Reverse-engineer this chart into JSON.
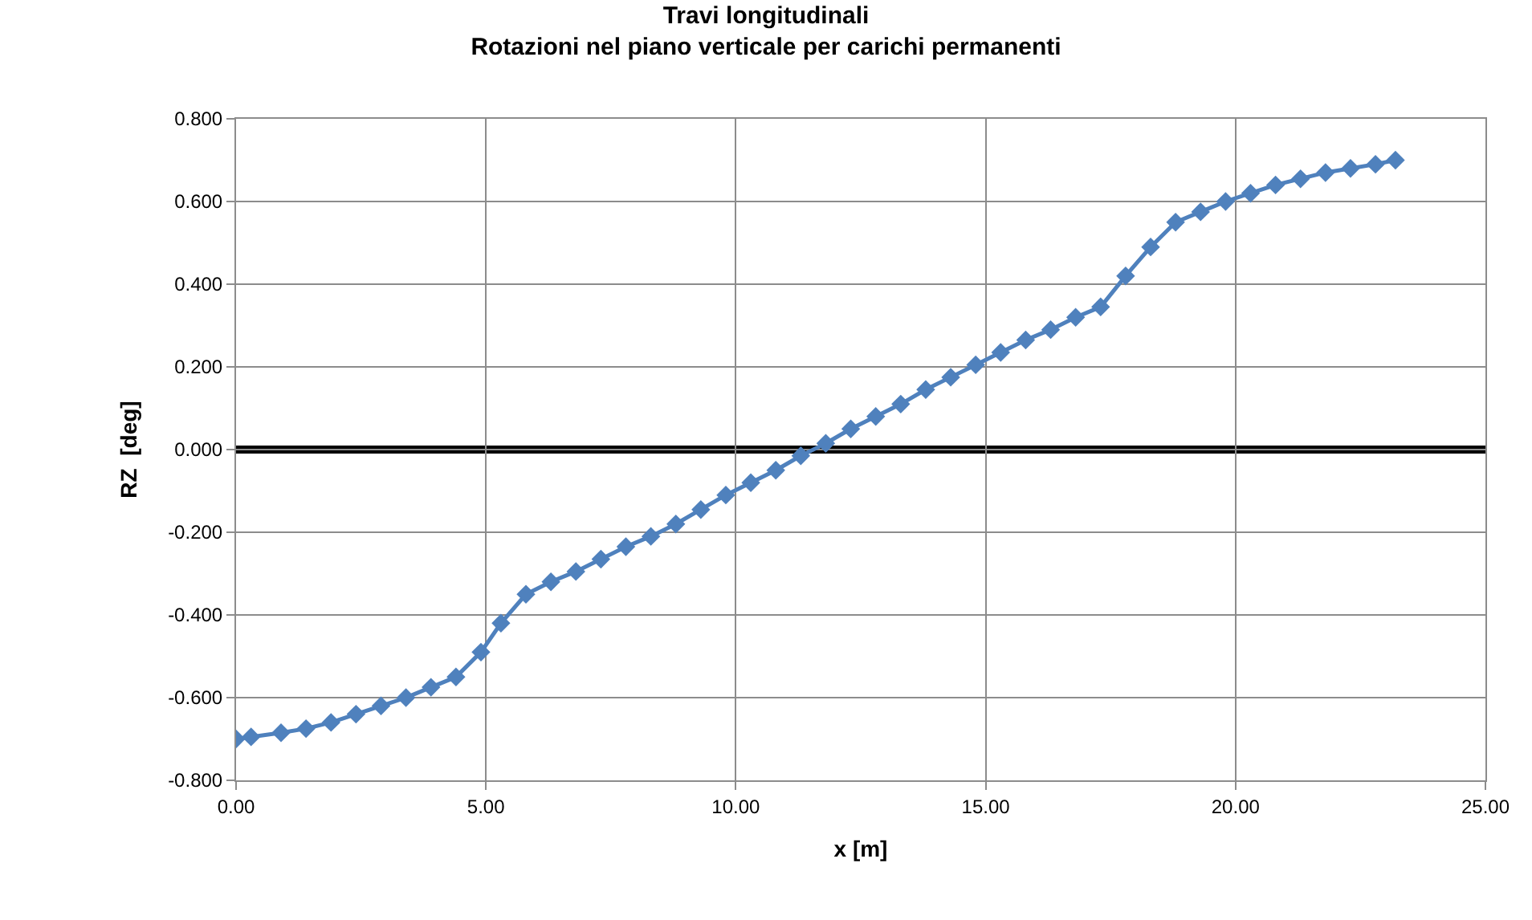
{
  "chart_data": {
    "type": "line",
    "title": "Travi longitudinali",
    "subtitle": "Rotazioni nel piano verticale per carichi permanenti",
    "xlabel": "x [m]",
    "ylabel": "RZ  [deg]",
    "x": [
      0.0,
      0.3,
      0.9,
      1.4,
      1.9,
      2.4,
      2.9,
      3.4,
      3.9,
      4.4,
      4.9,
      5.3,
      5.8,
      6.3,
      6.8,
      7.3,
      7.8,
      8.3,
      8.8,
      9.3,
      9.8,
      10.3,
      10.8,
      11.3,
      11.8,
      12.3,
      12.8,
      13.3,
      13.8,
      14.3,
      14.8,
      15.3,
      15.8,
      16.3,
      16.8,
      17.3,
      17.8,
      18.3,
      18.8,
      19.3,
      19.8,
      20.3,
      20.8,
      21.3,
      21.8,
      22.3,
      22.8,
      23.2
    ],
    "series": [
      {
        "color": "#4f81bd",
        "values": [
          -0.7,
          -0.695,
          -0.685,
          -0.675,
          -0.66,
          -0.64,
          -0.62,
          -0.6,
          -0.575,
          -0.55,
          -0.49,
          -0.42,
          -0.35,
          -0.32,
          -0.295,
          -0.265,
          -0.235,
          -0.21,
          -0.18,
          -0.145,
          -0.11,
          -0.08,
          -0.05,
          -0.015,
          0.015,
          0.05,
          0.08,
          0.11,
          0.145,
          0.175,
          0.205,
          0.235,
          0.265,
          0.29,
          0.32,
          0.345,
          0.42,
          0.49,
          0.55,
          0.575,
          0.6,
          0.62,
          0.64,
          0.655,
          0.67,
          0.68,
          0.69,
          0.7
        ]
      }
    ],
    "xlim": [
      0,
      25
    ],
    "xticks": [
      {
        "value": 0,
        "label": "0.00"
      },
      {
        "value": 5,
        "label": "5.00"
      },
      {
        "value": 10,
        "label": "10.00"
      },
      {
        "value": 15,
        "label": "15.00"
      },
      {
        "value": 20,
        "label": "20.00"
      },
      {
        "value": 25,
        "label": "25.00"
      }
    ],
    "ylim": [
      -0.8,
      0.8
    ],
    "yticks": [
      {
        "value": -0.8,
        "label": "-0.800"
      },
      {
        "value": -0.6,
        "label": "-0.600"
      },
      {
        "value": -0.4,
        "label": "-0.400"
      },
      {
        "value": -0.2,
        "label": "-0.200"
      },
      {
        "value": 0,
        "label": "0.000"
      },
      {
        "value": 0.2,
        "label": "0.200"
      },
      {
        "value": 0.4,
        "label": "0.400"
      },
      {
        "value": 0.6,
        "label": "0.600"
      },
      {
        "value": 0.8,
        "label": "0.800"
      }
    ],
    "ref_lines": [
      {
        "axis": "y",
        "value": 0,
        "color": "#000000"
      }
    ],
    "grid": true,
    "legend": false,
    "marker": "diamond",
    "line_style": "solid"
  }
}
